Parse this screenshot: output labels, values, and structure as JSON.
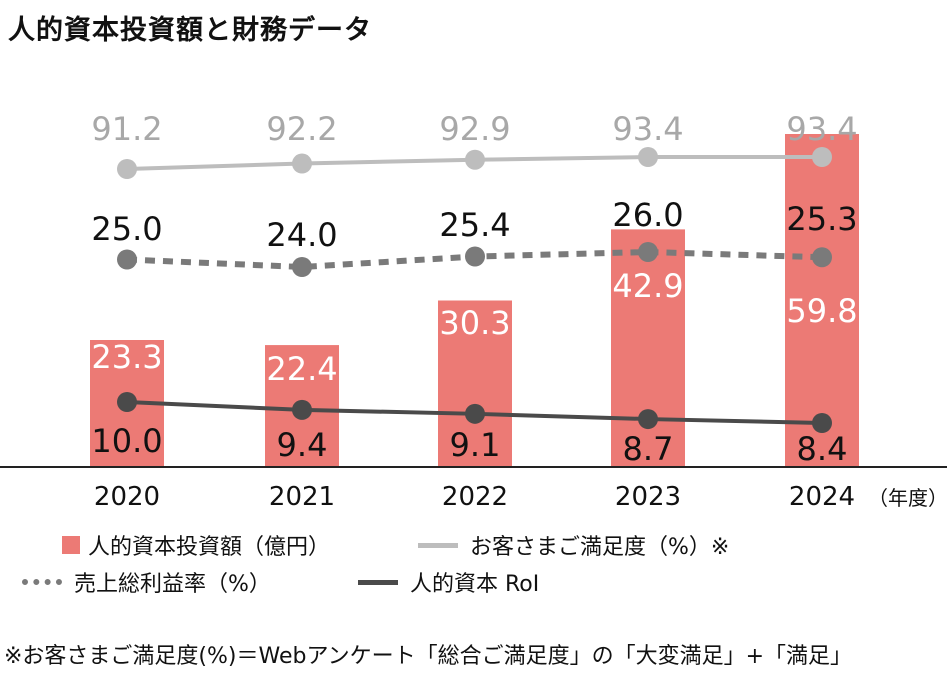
{
  "title": "人的資本投資額と財務データ",
  "unit_label": "（年度）",
  "legend": {
    "investment": "人的資本投資額（億円）",
    "satisfaction": "お客さまご満足度（%）※",
    "gross_margin": "売上総利益率（%）",
    "roi": "人的資本 RoI"
  },
  "footnote": "※お客さまご満足度(%)＝Webアンケート「総合ご満足度」の「大変満足」+「満足」",
  "colors": {
    "bar": "#ec7a75",
    "satisfaction": "#bdbdbd",
    "gross_margin": "#7a7a7a",
    "roi": "#4a4a4a"
  },
  "chart_data": {
    "type": "bar",
    "categories": [
      "2020",
      "2021",
      "2022",
      "2023",
      "2024"
    ],
    "series": [
      {
        "name": "人的資本投資額（億円）",
        "type": "bar",
        "values": [
          23.3,
          22.4,
          30.3,
          42.9,
          59.8
        ]
      },
      {
        "name": "お客さまご満足度（%）※",
        "type": "line",
        "values": [
          91.2,
          92.2,
          92.9,
          93.4,
          93.4
        ]
      },
      {
        "name": "売上総利益率（%）",
        "type": "line",
        "style": "dotted",
        "values": [
          25.0,
          24.0,
          25.4,
          26.0,
          25.3
        ]
      },
      {
        "name": "人的資本 RoI",
        "type": "line",
        "values": [
          10.0,
          9.4,
          9.1,
          8.7,
          8.4
        ]
      }
    ],
    "grid": false,
    "legend_position": "bottom"
  }
}
